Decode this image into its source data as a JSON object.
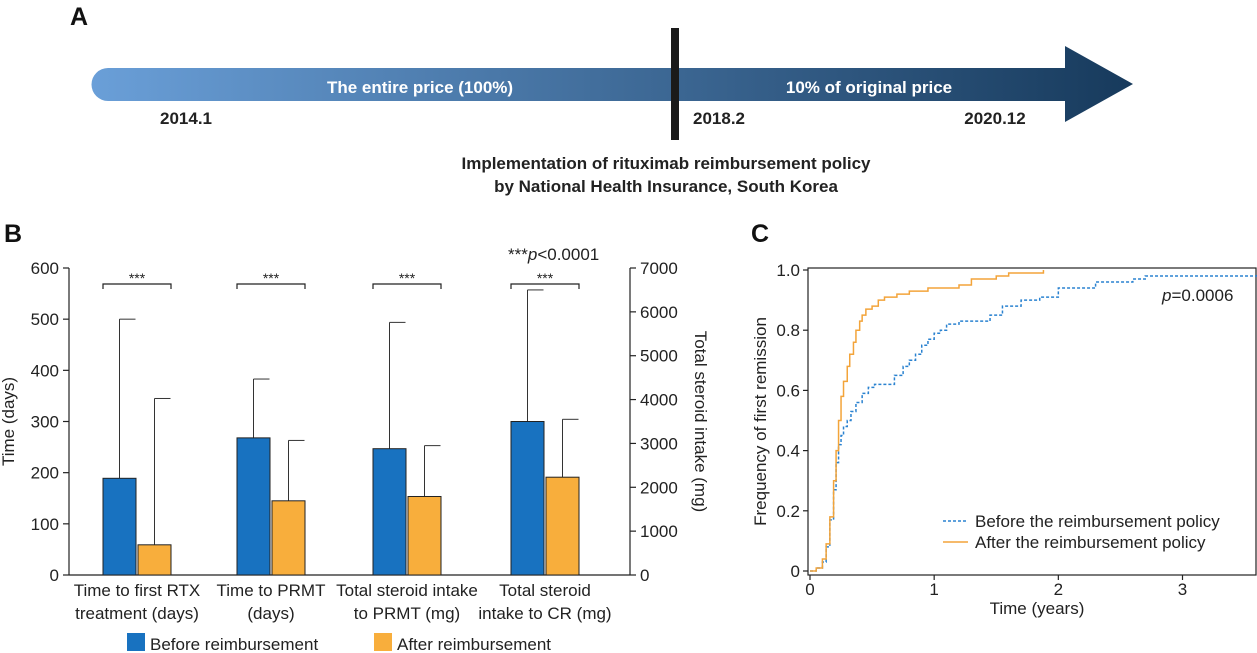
{
  "panel_a": {
    "letter": "A",
    "segment_before": "The entire price (100%)",
    "segment_after": "10% of original price",
    "date_start": "2014.1",
    "date_policy": "2018.2",
    "date_end": "2020.12",
    "caption_line1": "Implementation of rituximab reimbursement policy",
    "caption_line2": "by National Health Insurance, South Korea",
    "colors": {
      "arrow_light": "#6a9fd8",
      "arrow_dark": "#173a5c",
      "divider": "#1a1a1a"
    }
  },
  "panel_b": {
    "letter": "B",
    "significance_note_prefix": "***",
    "significance_note_p": "p",
    "significance_note_suffix": "<0.0001",
    "significance_mark": "***",
    "colors": {
      "before": "#1872c0",
      "after": "#f8ae3c"
    }
  },
  "panel_c": {
    "letter": "C",
    "pvalue_p": "p",
    "pvalue_suffix": "=0.0006",
    "colors": {
      "before": "#2a82d0",
      "after": "#f3a43a"
    }
  },
  "chart_data": [
    {
      "type": "bar",
      "title": "",
      "categories": [
        [
          "Time to first RTX",
          "treatment (days)"
        ],
        [
          "Time to PRMT",
          "(days)"
        ],
        [
          "Total steroid intake",
          "to PRMT (mg)"
        ],
        [
          "Total steroid",
          "intake to CR (mg)"
        ]
      ],
      "series": [
        {
          "name": "Before reimbursement",
          "values": [
            189,
            268,
            2880,
            3500
          ],
          "error_upper": [
            500,
            383,
            5760,
            6500
          ]
        },
        {
          "name": "After reimbursement",
          "values": [
            59,
            145,
            1790,
            2230
          ],
          "error_upper": [
            345,
            263,
            2950,
            3550
          ]
        }
      ],
      "ylabel_left": "Time (days)",
      "ylim_left": [
        0,
        600
      ],
      "yticks_left": [
        "0",
        "100",
        "200",
        "300",
        "400",
        "500",
        "600"
      ],
      "ylabel_right": "Total steroid intake (mg)",
      "ylim_right": [
        0,
        7000
      ],
      "yticks_right": [
        "0",
        "1000",
        "2000",
        "3000",
        "4000",
        "5000",
        "6000",
        "7000"
      ],
      "left_axis_categories": [
        0,
        1
      ],
      "right_axis_categories": [
        2,
        3
      ],
      "significance": [
        "***",
        "***",
        "***",
        "***"
      ],
      "legend_position": "bottom"
    },
    {
      "type": "line",
      "title": "",
      "xlabel": "Time (years)",
      "ylabel": "Frequency of first remission",
      "xlim": [
        0,
        3.6
      ],
      "ylim": [
        0,
        1.0
      ],
      "xticks": [
        "0",
        "1",
        "2",
        "3"
      ],
      "yticks": [
        "0",
        "0.2",
        "0.4",
        "0.6",
        "0.8",
        "1.0"
      ],
      "legend_position": "bottom-right",
      "series": [
        {
          "name": "Before the reimbursement policy",
          "style": "dashed",
          "x": [
            0,
            0.05,
            0.1,
            0.13,
            0.16,
            0.19,
            0.21,
            0.23,
            0.25,
            0.27,
            0.3,
            0.33,
            0.37,
            0.42,
            0.47,
            0.52,
            0.6,
            0.68,
            0.75,
            0.8,
            0.85,
            0.9,
            0.95,
            1.0,
            1.05,
            1.1,
            1.2,
            1.3,
            1.45,
            1.55,
            1.7,
            1.85,
            2.0,
            2.3,
            2.6,
            2.7,
            3.6
          ],
          "y": [
            0,
            0.01,
            0.03,
            0.08,
            0.17,
            0.27,
            0.36,
            0.42,
            0.45,
            0.48,
            0.5,
            0.53,
            0.56,
            0.59,
            0.61,
            0.62,
            0.62,
            0.65,
            0.68,
            0.7,
            0.72,
            0.75,
            0.77,
            0.79,
            0.8,
            0.82,
            0.83,
            0.83,
            0.85,
            0.88,
            0.9,
            0.91,
            0.94,
            0.96,
            0.97,
            0.98,
            0.985
          ]
        },
        {
          "name": "After the reimbursement policy",
          "style": "solid",
          "x": [
            0,
            0.05,
            0.1,
            0.13,
            0.16,
            0.19,
            0.21,
            0.23,
            0.25,
            0.27,
            0.3,
            0.32,
            0.35,
            0.37,
            0.4,
            0.42,
            0.45,
            0.5,
            0.55,
            0.6,
            0.7,
            0.8,
            0.95,
            1.2,
            1.3,
            1.5,
            1.6,
            1.88
          ],
          "y": [
            0,
            0.01,
            0.04,
            0.09,
            0.18,
            0.3,
            0.4,
            0.5,
            0.58,
            0.63,
            0.68,
            0.72,
            0.76,
            0.8,
            0.83,
            0.85,
            0.87,
            0.88,
            0.9,
            0.91,
            0.92,
            0.93,
            0.94,
            0.95,
            0.97,
            0.98,
            0.99,
            1.0
          ]
        }
      ]
    }
  ]
}
